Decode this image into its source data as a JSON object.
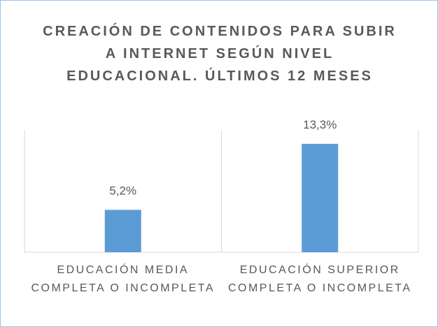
{
  "chart_data": {
    "type": "bar",
    "title": "CREACIÓN DE CONTENIDOS PARA SUBIR A INTERNET SEGÚN NIVEL EDUCACIONAL. ÚLTIMOS 12 MESES",
    "categories": [
      "EDUCACIÓN MEDIA COMPLETA O INCOMPLETA",
      "EDUCACIÓN SUPERIOR COMPLETA O INCOMPLETA"
    ],
    "values": [
      5.2,
      13.3
    ],
    "value_labels": [
      "5,2%",
      "13,3%"
    ],
    "color": "#5b9bd5",
    "ylim": [
      0,
      15
    ]
  }
}
